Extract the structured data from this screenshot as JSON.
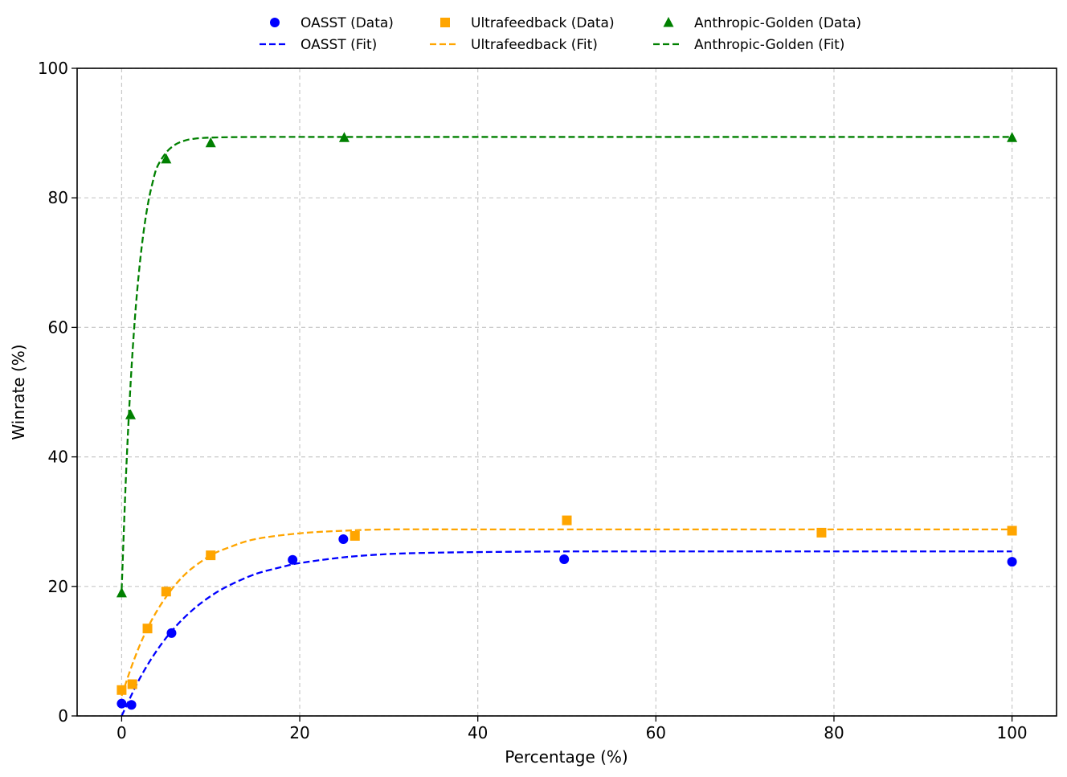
{
  "chart_data": {
    "type": "scatter",
    "xlabel": "Percentage (%)",
    "ylabel": "Winrate (%)",
    "xlim": [
      -5,
      105
    ],
    "ylim": [
      0,
      100
    ],
    "x_ticks": [
      0,
      20,
      40,
      60,
      80,
      100
    ],
    "y_ticks": [
      0,
      20,
      40,
      60,
      80,
      100
    ],
    "grid": true,
    "legend_position": "top-center",
    "series": [
      {
        "name": "OASST (Data)",
        "kind": "scatter",
        "marker": "circle",
        "color": "#0000ff",
        "points": [
          [
            0,
            1.9
          ],
          [
            1.1,
            1.7
          ],
          [
            5.6,
            12.8
          ],
          [
            19.2,
            24.1
          ],
          [
            24.9,
            27.3
          ],
          [
            49.7,
            24.2
          ],
          [
            100,
            23.8
          ]
        ]
      },
      {
        "name": "Ultrafeedback (Data)",
        "kind": "scatter",
        "marker": "square",
        "color": "#ffa500",
        "points": [
          [
            0,
            4.0
          ],
          [
            1.2,
            4.9
          ],
          [
            2.9,
            13.5
          ],
          [
            5.0,
            19.2
          ],
          [
            10.0,
            24.8
          ],
          [
            26.2,
            27.8
          ],
          [
            50.0,
            30.2
          ],
          [
            78.6,
            28.3
          ],
          [
            100,
            28.6
          ]
        ]
      },
      {
        "name": "Anthropic-Golden (Data)",
        "kind": "scatter",
        "marker": "triangle",
        "color": "#008000",
        "points": [
          [
            0,
            19.0
          ],
          [
            1.0,
            46.5
          ],
          [
            5.0,
            86.0
          ],
          [
            10.0,
            88.5
          ],
          [
            25.0,
            89.3
          ],
          [
            100,
            89.3
          ]
        ]
      },
      {
        "name": "OASST (Fit)",
        "kind": "line",
        "style": "dashed",
        "color": "#0000ff",
        "points": [
          [
            0,
            0.0
          ],
          [
            2,
            5.7
          ],
          [
            4,
            10.2
          ],
          [
            6,
            13.7
          ],
          [
            8,
            16.4
          ],
          [
            10,
            18.5
          ],
          [
            12,
            20.1
          ],
          [
            15,
            21.9
          ],
          [
            18,
            23.0
          ],
          [
            20,
            23.6
          ],
          [
            25,
            24.5
          ],
          [
            30,
            25.0
          ],
          [
            35,
            25.2
          ],
          [
            40,
            25.3
          ],
          [
            50,
            25.4
          ],
          [
            60,
            25.4
          ],
          [
            80,
            25.4
          ],
          [
            100,
            25.4
          ]
        ]
      },
      {
        "name": "Ultrafeedback (Fit)",
        "kind": "line",
        "style": "dashed",
        "color": "#ffa500",
        "points": [
          [
            0,
            3.1
          ],
          [
            1,
            7.2
          ],
          [
            2,
            10.8
          ],
          [
            3,
            13.8
          ],
          [
            4,
            16.3
          ],
          [
            5,
            18.4
          ],
          [
            6,
            20.2
          ],
          [
            7,
            21.7
          ],
          [
            8,
            22.9
          ],
          [
            10,
            24.8
          ],
          [
            12,
            26.0
          ],
          [
            15,
            27.3
          ],
          [
            20,
            28.2
          ],
          [
            25,
            28.6
          ],
          [
            30,
            28.8
          ],
          [
            40,
            28.8
          ],
          [
            60,
            28.8
          ],
          [
            100,
            28.8
          ]
        ]
      },
      {
        "name": "Anthropic-Golden (Fit)",
        "kind": "line",
        "style": "dashed",
        "color": "#008000",
        "points": [
          [
            0,
            19.5
          ],
          [
            0.5,
            37.5
          ],
          [
            1,
            51.2
          ],
          [
            1.5,
            61.6
          ],
          [
            2,
            69.3
          ],
          [
            2.5,
            75.1
          ],
          [
            3,
            79.4
          ],
          [
            3.5,
            82.5
          ],
          [
            4,
            84.8
          ],
          [
            5,
            87.0
          ],
          [
            6,
            88.2
          ],
          [
            7,
            88.8
          ],
          [
            8,
            89.1
          ],
          [
            10,
            89.3
          ],
          [
            15,
            89.4
          ],
          [
            25,
            89.4
          ],
          [
            50,
            89.4
          ],
          [
            100,
            89.4
          ]
        ]
      }
    ]
  }
}
